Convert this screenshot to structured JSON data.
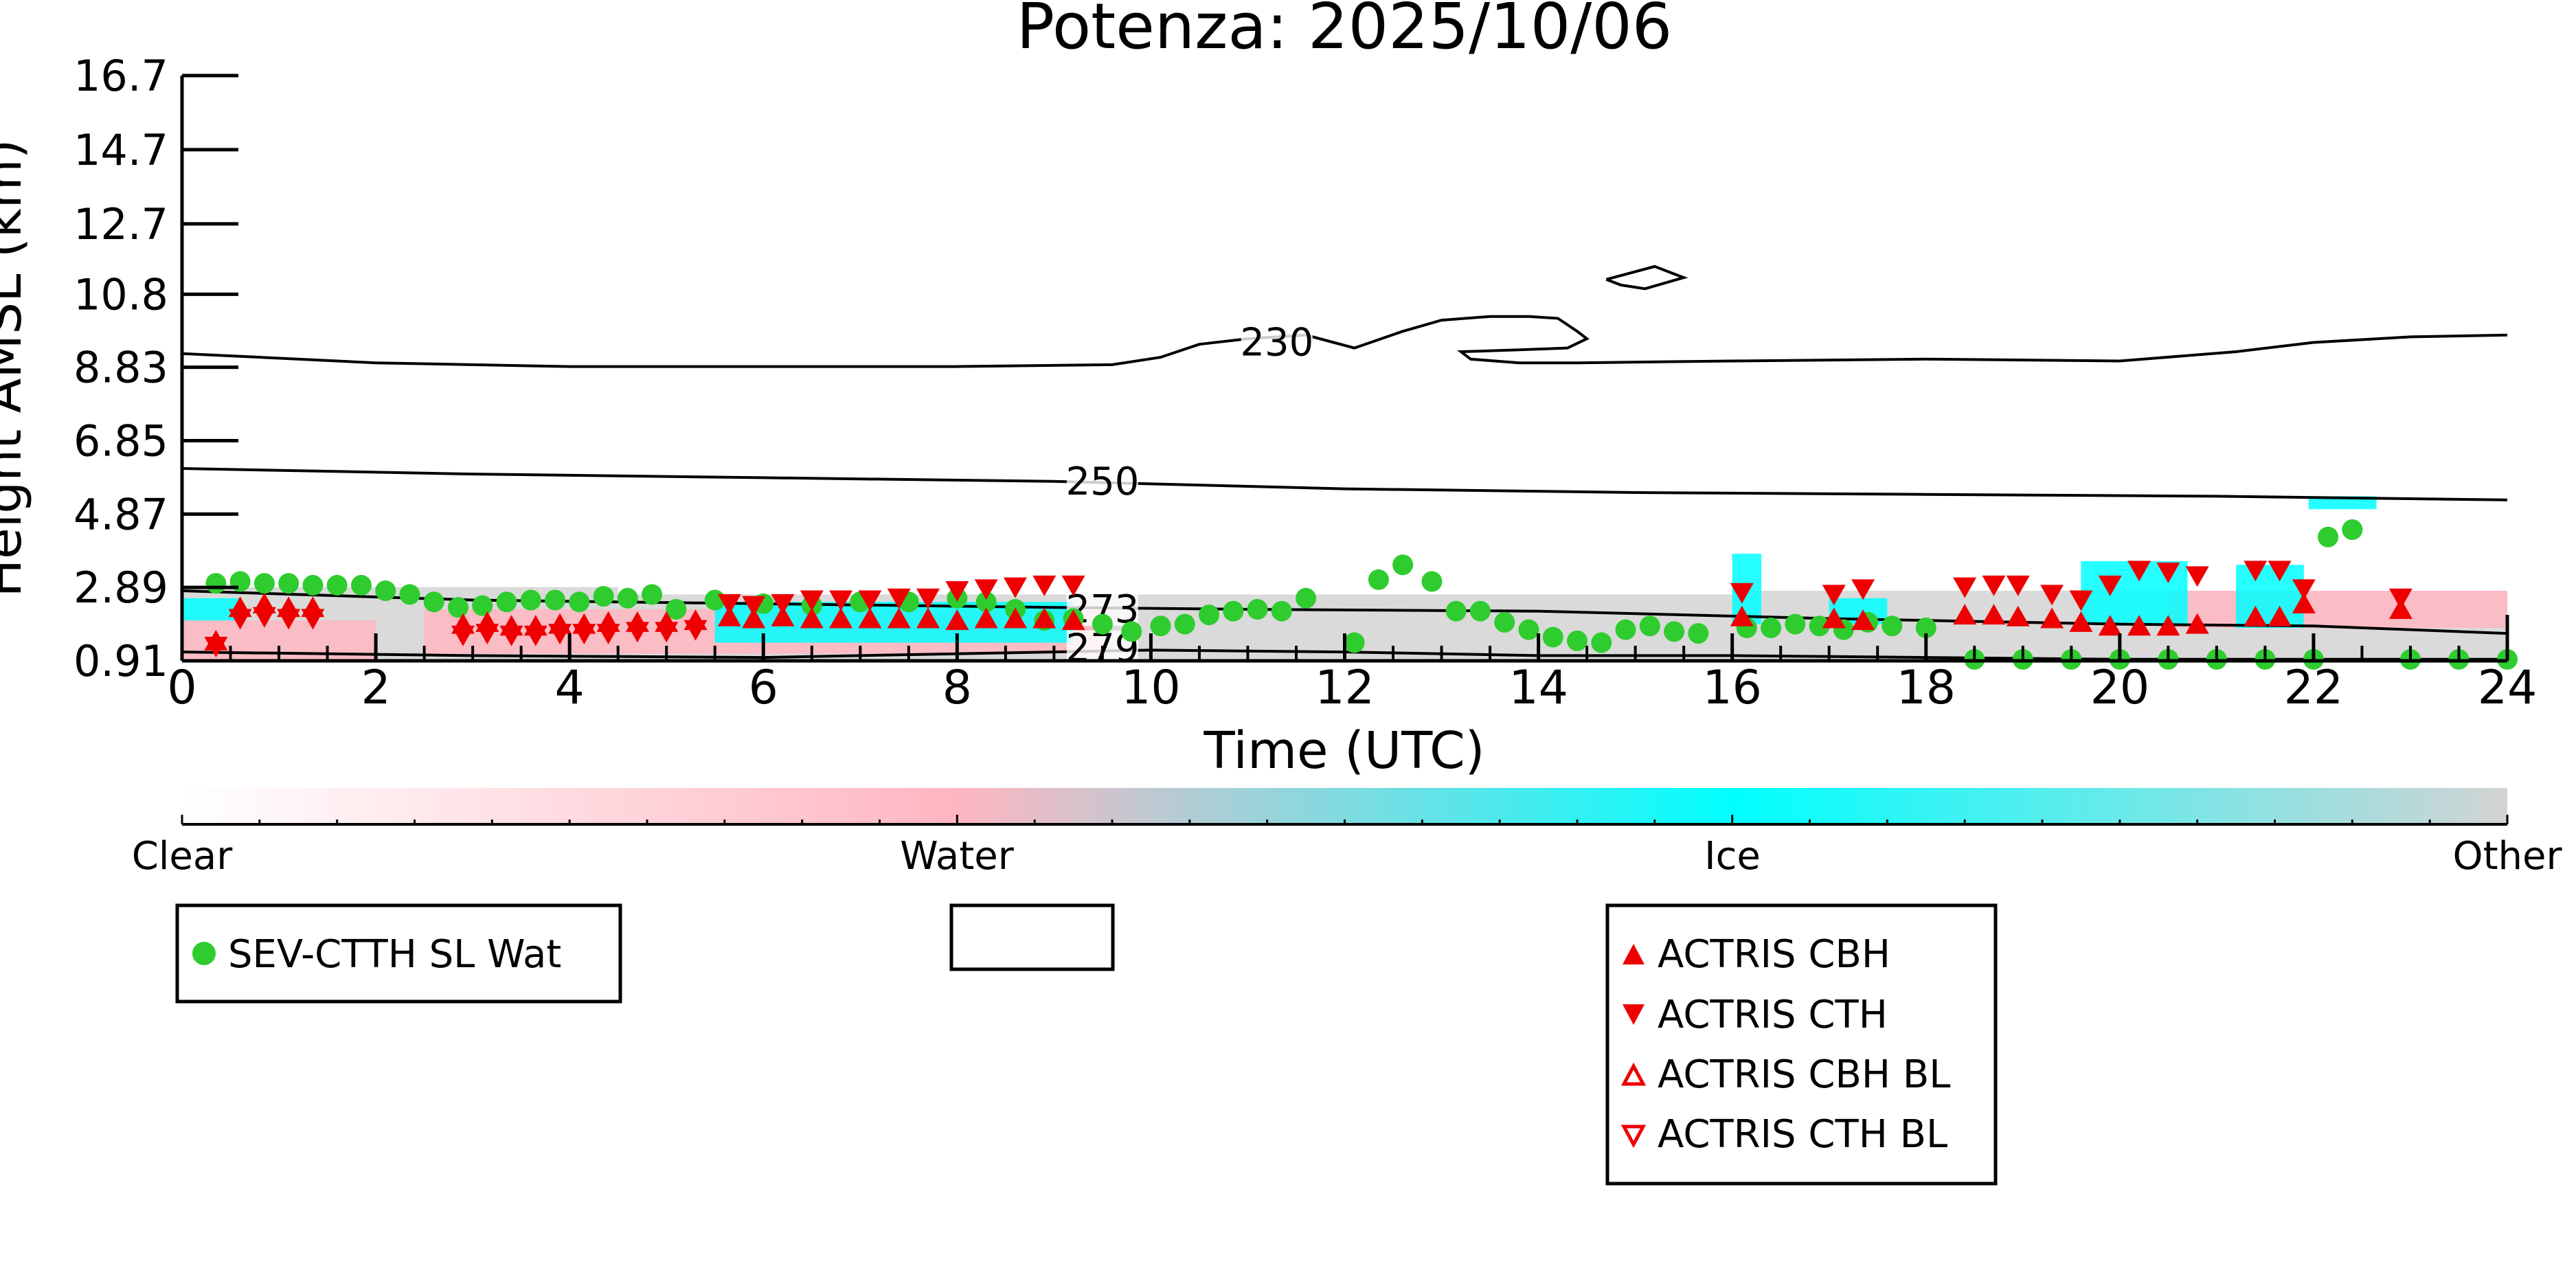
{
  "chart_data": {
    "type": "scatter",
    "title": "Potenza: 2025/10/06",
    "xlabel": "Time (UTC)",
    "ylabel": "Height AMSL (km)",
    "xlim": [
      0,
      24
    ],
    "ylim": [
      0.91,
      16.7
    ],
    "x_ticks": [
      0,
      2,
      4,
      6,
      8,
      10,
      12,
      14,
      16,
      18,
      20,
      22,
      24
    ],
    "y_ticks": [
      0.91,
      2.89,
      4.87,
      6.85,
      8.83,
      10.8,
      12.7,
      14.7,
      16.7
    ],
    "y_tick_labels": [
      "0.91",
      "2.89",
      "4.87",
      "6.85",
      "8.83",
      "10.8",
      "12.7",
      "14.7",
      "16.7"
    ],
    "grid": false,
    "colorbar": {
      "labels": [
        "Clear",
        "Water",
        "Ice",
        "Other"
      ],
      "colors": [
        "#ffffff",
        "#ffb6c1",
        "#00ffff",
        "#d3d3d3"
      ]
    },
    "contours": [
      {
        "label": "230",
        "label_at": [
          11.3,
          9.5
        ],
        "points": [
          [
            0,
            9.2
          ],
          [
            2,
            8.95
          ],
          [
            4,
            8.85
          ],
          [
            6,
            8.85
          ],
          [
            8,
            8.85
          ],
          [
            9.6,
            8.9
          ],
          [
            10.1,
            9.1
          ],
          [
            10.5,
            9.45
          ],
          [
            11,
            9.6
          ],
          [
            11.6,
            9.7
          ],
          [
            12.1,
            9.35
          ],
          [
            12.6,
            9.8
          ],
          [
            13,
            10.1
          ],
          [
            13.5,
            10.2
          ],
          [
            13.9,
            10.2
          ],
          [
            14.2,
            10.15
          ],
          [
            14.4,
            9.8
          ],
          [
            14.5,
            9.6
          ],
          [
            14.3,
            9.35
          ],
          [
            13.8,
            9.3
          ],
          [
            13.2,
            9.25
          ],
          [
            13.3,
            9.05
          ],
          [
            13.8,
            8.95
          ],
          [
            14.4,
            8.95
          ],
          [
            16,
            9.0
          ],
          [
            18,
            9.05
          ],
          [
            20,
            9.0
          ],
          [
            21.2,
            9.25
          ],
          [
            22,
            9.5
          ],
          [
            23,
            9.65
          ],
          [
            24,
            9.7
          ]
        ]
      },
      {
        "label": "250",
        "label_at": [
          9.5,
          5.75
        ],
        "points": [
          [
            0,
            6.1
          ],
          [
            3,
            5.95
          ],
          [
            6,
            5.85
          ],
          [
            9,
            5.75
          ],
          [
            12,
            5.55
          ],
          [
            15,
            5.45
          ],
          [
            18,
            5.4
          ],
          [
            21,
            5.35
          ],
          [
            24,
            5.25
          ]
        ]
      },
      {
        "label": "273",
        "label_at": [
          9.5,
          2.3
        ],
        "points": [
          [
            0,
            2.8
          ],
          [
            3,
            2.55
          ],
          [
            6,
            2.45
          ],
          [
            9,
            2.35
          ],
          [
            11,
            2.3
          ],
          [
            14,
            2.25
          ],
          [
            17,
            2.05
          ],
          [
            20,
            1.9
          ],
          [
            22,
            1.85
          ],
          [
            24,
            1.65
          ]
        ]
      },
      {
        "label": "279",
        "label_at": [
          9.5,
          1.25
        ],
        "points": [
          [
            0,
            1.15
          ],
          [
            3,
            1.05
          ],
          [
            6,
            1.0
          ],
          [
            8,
            1.1
          ],
          [
            10,
            1.2
          ],
          [
            12,
            1.15
          ],
          [
            14,
            1.05
          ],
          [
            16,
            1.05
          ],
          [
            18,
            1.0
          ],
          [
            20,
            0.95
          ],
          [
            24,
            0.95
          ]
        ]
      }
    ],
    "contour_islands": [
      {
        "points": [
          [
            14.7,
            11.2
          ],
          [
            15.2,
            11.55
          ],
          [
            15.5,
            11.25
          ],
          [
            15.1,
            10.95
          ],
          [
            14.85,
            11.05
          ],
          [
            14.7,
            11.2
          ]
        ]
      }
    ],
    "cloud_regions": [
      {
        "class": "Other",
        "color": "#d3d3d3",
        "x": [
          0,
          4.5
        ],
        "y": [
          0.95,
          2.9
        ]
      },
      {
        "class": "Other",
        "color": "#d3d3d3",
        "x": [
          4.5,
          10
        ],
        "y": [
          0.95,
          2.7
        ]
      },
      {
        "class": "Other",
        "color": "#d3d3d3",
        "x": [
          10,
          16
        ],
        "y": [
          0.95,
          2.7
        ]
      },
      {
        "class": "Other",
        "color": "#d3d3d3",
        "x": [
          16,
          24
        ],
        "y": [
          0.95,
          2.8
        ]
      },
      {
        "class": "Water",
        "color": "#ffb6c1",
        "x": [
          0,
          2
        ],
        "y": [
          0.95,
          2.0
        ]
      },
      {
        "class": "Water",
        "color": "#ffb6c1",
        "x": [
          2.5,
          9.5
        ],
        "y": [
          1.1,
          2.3
        ]
      },
      {
        "class": "Water",
        "color": "#ffb6c1",
        "x": [
          20.5,
          24
        ],
        "y": [
          1.8,
          2.8
        ]
      },
      {
        "class": "Ice",
        "color": "#00ffff",
        "x": [
          0,
          0.6
        ],
        "y": [
          2.0,
          2.6
        ]
      },
      {
        "class": "Ice",
        "color": "#00ffff",
        "x": [
          5.5,
          9.2
        ],
        "y": [
          1.4,
          2.5
        ]
      },
      {
        "class": "Ice",
        "color": "#00ffff",
        "x": [
          16,
          16.3
        ],
        "y": [
          1.9,
          3.8
        ]
      },
      {
        "class": "Ice",
        "color": "#00ffff",
        "x": [
          17,
          17.6
        ],
        "y": [
          1.9,
          2.6
        ]
      },
      {
        "class": "Ice",
        "color": "#00ffff",
        "x": [
          19.6,
          20.7
        ],
        "y": [
          1.9,
          3.6
        ]
      },
      {
        "class": "Ice",
        "color": "#00ffff",
        "x": [
          21.2,
          21.9
        ],
        "y": [
          1.8,
          3.5
        ]
      },
      {
        "class": "Ice",
        "color": "#00ffff",
        "x": [
          21.95,
          22.65
        ],
        "y": [
          5.0,
          5.35
        ]
      }
    ],
    "series": [
      {
        "name": "SEV-CTTH SL Wat",
        "marker": "circle",
        "color": "#2ecc2e",
        "x": [
          0.35,
          0.6,
          0.85,
          1.1,
          1.35,
          1.6,
          1.85,
          2.1,
          2.35,
          2.6,
          2.85,
          3.1,
          3.35,
          3.6,
          3.85,
          4.1,
          4.35,
          4.6,
          4.85,
          5.1,
          5.5,
          6.0,
          6.5,
          7.0,
          7.5,
          8.0,
          8.3,
          8.6,
          8.9,
          9.2,
          9.5,
          9.8,
          10.1,
          10.35,
          10.6,
          10.85,
          11.1,
          11.35,
          11.6,
          12.1,
          12.35,
          12.6,
          12.9,
          13.15,
          13.4,
          13.65,
          13.9,
          14.15,
          14.4,
          14.65,
          14.9,
          15.15,
          15.4,
          15.65,
          16.15,
          16.4,
          16.65,
          16.9,
          17.15,
          17.4,
          17.65,
          18.0,
          18.5,
          19.0,
          19.5,
          20.0,
          20.5,
          21.0,
          21.5,
          22.0,
          22.15,
          22.4,
          23.0,
          23.5,
          24.0
        ],
        "y": [
          3.0,
          3.05,
          3.0,
          3.0,
          2.95,
          2.95,
          2.95,
          2.8,
          2.7,
          2.5,
          2.35,
          2.4,
          2.5,
          2.55,
          2.55,
          2.5,
          2.65,
          2.6,
          2.7,
          2.3,
          2.55,
          2.45,
          2.4,
          2.5,
          2.5,
          2.6,
          2.5,
          2.3,
          2.0,
          2.05,
          1.9,
          1.7,
          1.85,
          1.9,
          2.15,
          2.25,
          2.3,
          2.25,
          2.6,
          1.4,
          3.1,
          3.5,
          3.05,
          2.25,
          2.25,
          1.95,
          1.75,
          1.55,
          1.45,
          1.4,
          1.75,
          1.85,
          1.7,
          1.65,
          1.8,
          1.8,
          1.9,
          1.85,
          1.75,
          1.95,
          1.85,
          1.8,
          0.95,
          0.95,
          0.95,
          0.95,
          0.95,
          0.95,
          0.95,
          0.95,
          4.25,
          4.45,
          0.95,
          0.95,
          0.95
        ]
      },
      {
        "name": "ACTRIS CBH",
        "marker": "triangle-up",
        "color": "#ee0000",
        "x": [
          0.35,
          0.6,
          0.85,
          1.1,
          1.35,
          2.9,
          3.15,
          3.4,
          3.65,
          3.9,
          4.15,
          4.4,
          4.7,
          5.0,
          5.3,
          5.65,
          5.9,
          6.2,
          6.5,
          6.8,
          7.1,
          7.4,
          7.7,
          8.0,
          8.3,
          8.6,
          8.9,
          9.2,
          16.1,
          17.05,
          17.35,
          18.4,
          18.7,
          18.95,
          19.3,
          19.6,
          19.9,
          20.2,
          20.5,
          20.8,
          21.4,
          21.65,
          21.9,
          22.9
        ],
        "y": [
          1.45,
          2.35,
          2.45,
          2.35,
          2.35,
          1.9,
          1.95,
          1.85,
          1.85,
          1.9,
          1.9,
          1.95,
          1.95,
          1.95,
          2.0,
          2.1,
          2.05,
          2.1,
          2.05,
          2.05,
          2.05,
          2.05,
          2.05,
          2.0,
          2.05,
          2.05,
          2.05,
          2.0,
          2.1,
          2.05,
          2.0,
          2.15,
          2.15,
          2.1,
          2.05,
          1.95,
          1.85,
          1.85,
          1.85,
          1.9,
          2.1,
          2.1,
          2.45,
          2.3
        ]
      },
      {
        "name": "ACTRIS CTH",
        "marker": "triangle-down",
        "color": "#ee0000",
        "x": [
          0.35,
          0.6,
          0.85,
          1.1,
          1.35,
          2.9,
          3.15,
          3.4,
          3.65,
          3.9,
          4.15,
          4.4,
          4.7,
          5.0,
          5.3,
          5.65,
          5.9,
          6.2,
          6.5,
          6.8,
          7.1,
          7.4,
          7.7,
          8.0,
          8.3,
          8.6,
          8.9,
          9.2,
          16.1,
          17.05,
          17.35,
          18.4,
          18.7,
          18.95,
          19.3,
          19.6,
          19.9,
          20.2,
          20.5,
          20.8,
          21.4,
          21.65,
          21.9,
          22.9
        ],
        "y": [
          1.3,
          2.05,
          2.1,
          2.05,
          2.05,
          1.6,
          1.65,
          1.6,
          1.6,
          1.65,
          1.65,
          1.65,
          1.7,
          1.7,
          1.75,
          2.45,
          2.4,
          2.45,
          2.55,
          2.55,
          2.55,
          2.6,
          2.6,
          2.8,
          2.85,
          2.9,
          2.95,
          2.95,
          2.75,
          2.7,
          2.85,
          2.9,
          2.95,
          2.95,
          2.7,
          2.55,
          2.95,
          3.35,
          3.3,
          3.2,
          3.35,
          3.35,
          2.85,
          2.6
        ]
      }
    ],
    "legend_boxes": [
      {
        "entries": [
          "SEV-CTTH SL Wat"
        ]
      },
      {
        "entries": []
      },
      {
        "entries": [
          "ACTRIS CBH",
          "ACTRIS CTH",
          "ACTRIS CBH BL",
          "ACTRIS CTH BL"
        ]
      }
    ],
    "legend_entry_markers": [
      "circle",
      "triangle-up",
      "triangle-down",
      "triangle-up-open",
      "triangle-down-open"
    ]
  }
}
